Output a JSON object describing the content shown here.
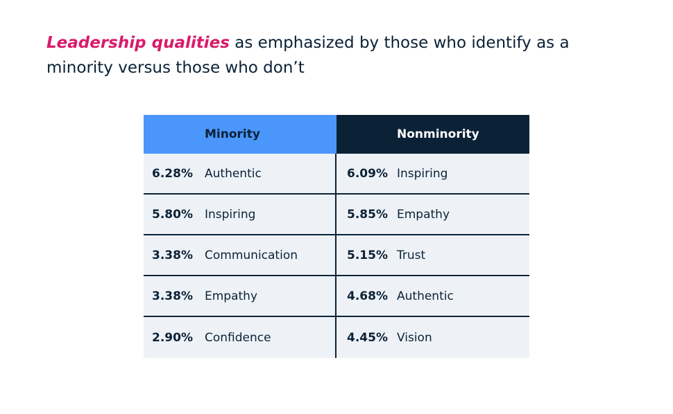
{
  "chart_data": {
    "type": "table",
    "title_highlight": "Leadership qualities",
    "title_rest": "as emphasized by those who identify as a minority versus those who don’t",
    "columns": [
      {
        "name": "Minority",
        "color": "#4b96fb",
        "rows": [
          {
            "value": "6.28%",
            "label": "Authentic"
          },
          {
            "value": "5.80%",
            "label": "Inspiring"
          },
          {
            "value": "3.38%",
            "label": "Communication"
          },
          {
            "value": "3.38%",
            "label": "Empathy"
          },
          {
            "value": "2.90%",
            "label": "Confidence"
          }
        ]
      },
      {
        "name": "Nonminority",
        "color": "#0b2136",
        "rows": [
          {
            "value": "6.09%",
            "label": "Inspiring"
          },
          {
            "value": "5.85%",
            "label": "Empathy"
          },
          {
            "value": "5.15%",
            "label": "Trust"
          },
          {
            "value": "4.68%",
            "label": "Authentic"
          },
          {
            "value": "4.45%",
            "label": "Vision"
          }
        ]
      }
    ]
  },
  "colors": {
    "highlight": "#d81b6a",
    "text": "#0b2136",
    "row_background": "#eef2f7"
  }
}
